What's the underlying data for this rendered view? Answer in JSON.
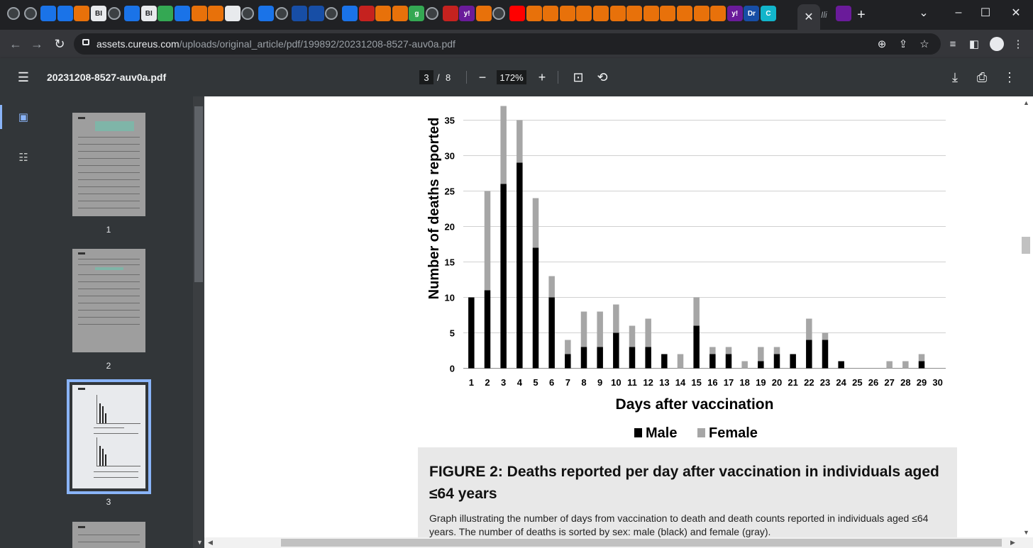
{
  "browser": {
    "url_host": "assets.cureus.com",
    "url_path": "/uploads/original_article/pdf/199892/20231208-8527-auv0a.pdf",
    "tab_icons": [
      "globe-icon",
      "globe-icon",
      "shield-icon",
      "shield-icon",
      "bookmark-icon",
      "bi-logo",
      "globe-icon",
      "search-icon",
      "bi-logo",
      "play-icon",
      "search-icon",
      "bookmark-icon",
      "bookmark-icon",
      "book-icon",
      "globe-icon",
      "shield-icon",
      "globe-icon",
      "hexagon-icon",
      "hexagon-icon",
      "globe-icon",
      "shield-icon",
      "pin-icon",
      "bookmark-icon",
      "bookmark-icon",
      "g-logo",
      "globe-icon",
      "pin-icon",
      "yahoo-logo",
      "bookmark-icon",
      "globe-icon",
      "youtube-icon",
      "bookmark-icon",
      "bookmark-icon",
      "bookmark-icon",
      "bookmark-icon",
      "bookmark-icon",
      "bookmark-icon",
      "bookmark-icon",
      "bookmark-icon",
      "bookmark-icon",
      "bookmark-icon",
      "bookmark-icon",
      "bookmark-icon",
      "yahoo-logo",
      "dr-logo",
      "c-logo"
    ],
    "tab_labels": {
      "bi1": "BI",
      "bi2": "BI",
      "g": "g",
      "y1": "y!",
      "y2": "y!",
      "dr": "Dr",
      "c": "C"
    }
  },
  "pdf_toolbar": {
    "title": "20231208-8527-auv0a.pdf",
    "current_page": "3",
    "page_separator": "/",
    "total_pages": "8",
    "zoom": "172%"
  },
  "sidebar": {
    "thumbnails": [
      {
        "number": "1"
      },
      {
        "number": "2"
      },
      {
        "number": "3"
      }
    ]
  },
  "chart_data": {
    "type": "bar",
    "stacked": true,
    "categories": [
      "1",
      "2",
      "3",
      "4",
      "5",
      "6",
      "7",
      "8",
      "9",
      "10",
      "11",
      "12",
      "13",
      "14",
      "15",
      "16",
      "17",
      "18",
      "19",
      "20",
      "21",
      "22",
      "23",
      "24",
      "25",
      "26",
      "27",
      "28",
      "29",
      "30"
    ],
    "series": [
      {
        "name": "Male",
        "color": "#000000",
        "values": [
          10,
          11,
          26,
          29,
          17,
          10,
          2,
          3,
          3,
          5,
          3,
          3,
          2,
          0,
          6,
          2,
          2,
          0,
          1,
          2,
          2,
          4,
          4,
          1,
          0,
          0,
          0,
          0,
          1,
          0
        ]
      },
      {
        "name": "Female",
        "color": "#a6a6a6",
        "values": [
          0,
          14,
          11,
          6,
          7,
          3,
          2,
          5,
          5,
          4,
          3,
          4,
          0,
          2,
          4,
          1,
          1,
          1,
          2,
          1,
          0,
          3,
          1,
          0,
          0,
          0,
          1,
          1,
          1,
          0
        ]
      }
    ],
    "xlabel": "Days after vaccination",
    "ylabel": "Number of deaths reported",
    "yticks": [
      "0",
      "5",
      "10",
      "15",
      "20",
      "25",
      "30",
      "35"
    ],
    "ylim": [
      0,
      37
    ],
    "grid": true,
    "legend": "bottom"
  },
  "figure": {
    "title": "FIGURE 2: Deaths reported per day after vaccination in individuals aged ≤64 years",
    "description": "Graph illustrating the number of days from vaccination to death and death counts reported in individuals aged ≤64 years. The number of deaths is sorted by sex: male (black) and female (gray)."
  }
}
